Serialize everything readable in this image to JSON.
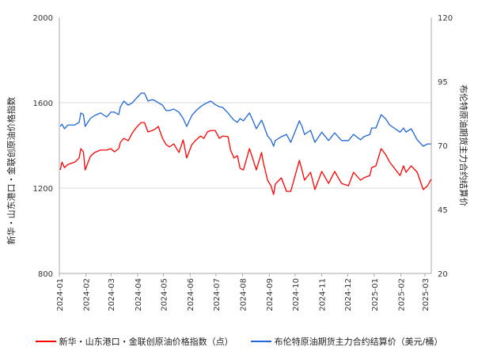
{
  "chart_data": {
    "type": "line",
    "ylabel_left": "新华・山东港口・金联创原油价格指数",
    "ylabel_right": "布伦特原油期货主力合约结算价",
    "ylim_left": [
      800,
      2000
    ],
    "ylim_right": [
      20,
      120
    ],
    "yticks_left": [
      "800",
      "1200",
      "1600",
      "2000"
    ],
    "yticks_right": [
      "20",
      "45",
      "70",
      "95",
      "120"
    ],
    "xticks": [
      "2024-01",
      "2024-02",
      "2024-03",
      "2024-04",
      "2024-05",
      "2024-06",
      "2024-07",
      "2024-08",
      "2024-09",
      "2024-10",
      "2024-11",
      "2024-12",
      "2025-01",
      "2025-02",
      "2025-03"
    ],
    "grid": "horizontal",
    "legend_position": "bottom",
    "x": [
      "2024-01-02",
      "2024-01-04",
      "2024-01-07",
      "2024-01-11",
      "2024-01-19",
      "2024-01-24",
      "2024-01-26",
      "2024-01-29",
      "2024-01-31",
      "2024-02-06",
      "2024-02-11",
      "2024-02-18",
      "2024-02-25",
      "2024-03-01",
      "2024-03-05",
      "2024-03-10",
      "2024-03-12",
      "2024-03-16",
      "2024-03-21",
      "2024-03-26",
      "2024-03-30",
      "2024-04-05",
      "2024-04-09",
      "2024-04-13",
      "2024-04-18",
      "2024-04-22",
      "2024-04-25",
      "2024-04-30",
      "2024-05-04",
      "2024-05-08",
      "2024-05-13",
      "2024-05-19",
      "2024-05-24",
      "2024-05-28",
      "2024-06-03",
      "2024-06-08",
      "2024-06-13",
      "2024-06-17",
      "2024-06-21",
      "2024-06-25",
      "2024-06-30",
      "2024-07-05",
      "2024-07-09",
      "2024-07-15",
      "2024-07-18",
      "2024-07-22",
      "2024-07-26",
      "2024-07-29",
      "2024-08-02",
      "2024-08-09",
      "2024-08-12",
      "2024-08-17",
      "2024-08-23",
      "2024-08-25",
      "2024-08-30",
      "2024-09-03",
      "2024-09-06",
      "2024-09-08",
      "2024-09-15",
      "2024-09-21",
      "2024-09-26",
      "2024-10-06",
      "2024-10-09",
      "2024-10-12",
      "2024-10-19",
      "2024-10-24",
      "2024-11-01",
      "2024-11-09",
      "2024-11-16",
      "2024-11-24",
      "2024-12-02",
      "2024-12-08",
      "2024-12-16",
      "2024-12-20",
      "2024-12-27",
      "2024-12-29",
      "2025-01-03",
      "2025-01-09",
      "2025-01-14",
      "2025-01-19",
      "2025-01-31",
      "2025-02-04",
      "2025-02-07",
      "2025-02-13",
      "2025-02-20",
      "2025-02-27",
      "2025-03-04",
      "2025-03-08"
    ],
    "series": [
      {
        "name": "新华・山东港口・金联创原油价格指数（点）",
        "axis": "left",
        "color": "#ff0000",
        "values": [
          1285,
          1322,
          1296,
          1311,
          1322,
          1341,
          1385,
          1370,
          1285,
          1348,
          1367,
          1378,
          1378,
          1385,
          1370,
          1385,
          1415,
          1433,
          1422,
          1459,
          1481,
          1507,
          1507,
          1463,
          1470,
          1478,
          1489,
          1433,
          1404,
          1393,
          1407,
          1367,
          1426,
          1341,
          1404,
          1426,
          1444,
          1433,
          1463,
          1470,
          1470,
          1433,
          1444,
          1441,
          1378,
          1341,
          1352,
          1293,
          1285,
          1385,
          1348,
          1285,
          1367,
          1322,
          1237,
          1211,
          1170,
          1219,
          1248,
          1185,
          1185,
          1330,
          1285,
          1237,
          1274,
          1193,
          1278,
          1222,
          1278,
          1222,
          1211,
          1274,
          1237,
          1248,
          1259,
          1296,
          1304,
          1385,
          1359,
          1322,
          1259,
          1304,
          1274,
          1304,
          1274,
          1193,
          1211,
          1241
        ]
      },
      {
        "name": "布伦特原油期货主力合约结算价（美元/桶）",
        "axis": "right",
        "color": "#1f66d6",
        "values": [
          77.4,
          78.3,
          76.5,
          78.0,
          78.0,
          79.0,
          82.7,
          82.0,
          77.4,
          80.5,
          81.7,
          82.7,
          81.1,
          83.0,
          83.0,
          82.0,
          85.1,
          87.3,
          85.7,
          86.7,
          88.2,
          90.4,
          90.4,
          87.3,
          87.9,
          87.3,
          86.7,
          85.7,
          83.6,
          83.6,
          84.2,
          83.0,
          80.5,
          77.4,
          81.7,
          83.6,
          85.1,
          86.0,
          86.7,
          87.3,
          86.0,
          85.1,
          84.8,
          82.7,
          81.4,
          79.9,
          79.0,
          80.5,
          79.6,
          82.7,
          80.5,
          76.5,
          79.9,
          78.3,
          73.7,
          72.2,
          69.7,
          71.9,
          73.4,
          74.3,
          71.2,
          79.6,
          77.4,
          74.3,
          75.9,
          71.2,
          75.2,
          71.9,
          74.9,
          71.9,
          71.9,
          74.3,
          72.2,
          73.4,
          74.3,
          76.8,
          76.8,
          82.0,
          80.5,
          78.0,
          75.2,
          76.8,
          75.2,
          76.5,
          72.2,
          69.7,
          70.6,
          70.6
        ]
      }
    ]
  }
}
